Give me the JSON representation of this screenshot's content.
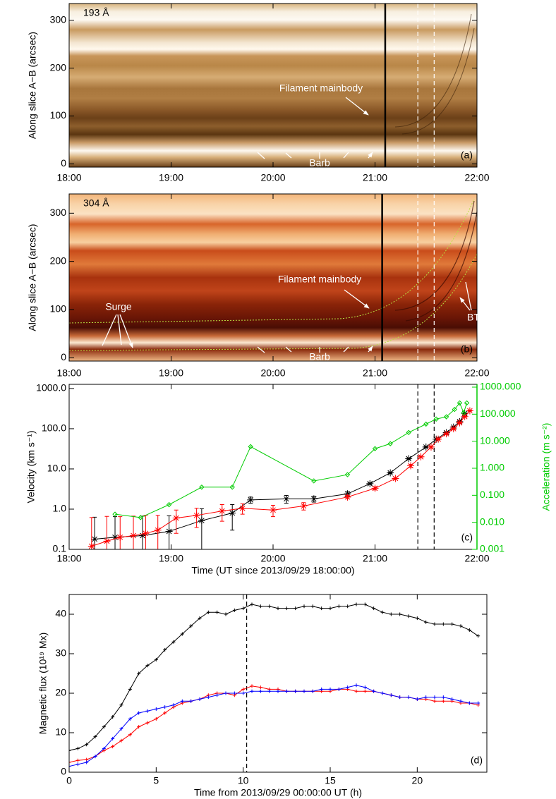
{
  "chart_data": [
    {
      "type": "image",
      "wavelength": "193 Å",
      "label": "(a)",
      "annotations": [
        "Filament mainbody",
        "Barb"
      ],
      "ylabel": "Along slice A−B (arcsec)",
      "xlim": [
        18,
        22
      ],
      "xticks": [
        {
          "value": 18,
          "label": "18:00"
        },
        {
          "value": 19,
          "label": "19:00"
        },
        {
          "value": 20,
          "label": "20:00"
        },
        {
          "value": 21,
          "label": "21:00"
        },
        {
          "value": 22,
          "label": "22:00"
        }
      ],
      "ylim": [
        -7,
        335
      ],
      "yticks": [
        0,
        100,
        200,
        300
      ],
      "vlines": [
        21.1,
        21.42,
        21.58
      ],
      "vline_styles": [
        "solid",
        "dashed",
        "dashed"
      ],
      "vline_colors": [
        "#000000",
        "#ffffff",
        "#ffffff"
      ]
    },
    {
      "type": "image",
      "wavelength": "304 Å",
      "label": "(b)",
      "annotations": [
        "Filament mainbody",
        "Surge",
        "BT",
        "Barb"
      ],
      "ylabel": "Along slice A−B (arcsec)",
      "xlim": [
        18,
        22
      ],
      "xticks": [
        {
          "value": 18,
          "label": "18:00"
        },
        {
          "value": 19,
          "label": "19:00"
        },
        {
          "value": 20,
          "label": "20:00"
        },
        {
          "value": 21,
          "label": "21:00"
        },
        {
          "value": 22,
          "label": "22:00"
        }
      ],
      "ylim": [
        -7,
        340
      ],
      "yticks": [
        0,
        100,
        200,
        300
      ],
      "vlines": [
        21.07,
        21.42,
        21.58
      ],
      "vline_styles": [
        "solid",
        "dashed",
        "dashed"
      ],
      "vline_colors": [
        "#000000",
        "#ffffff",
        "#ffffff"
      ]
    },
    {
      "type": "line",
      "label": "(c)",
      "xlabel": "Time (UT since 2013/09/29 18:00:00)",
      "ylabel": "Velocity (km s⁻¹)",
      "y2label": "Acceleration (m s⁻²)",
      "y2color": "#00cc00",
      "xlim": [
        18,
        22
      ],
      "xticks": [
        {
          "value": 18,
          "label": "18:00"
        },
        {
          "value": 19,
          "label": "19:00"
        },
        {
          "value": 20,
          "label": "20:00"
        },
        {
          "value": 21,
          "label": "21:00"
        },
        {
          "value": 22,
          "label": "22:00"
        }
      ],
      "ylog": true,
      "ylim": [
        0.1,
        1270
      ],
      "yticks": [
        0.1,
        {
          "value": 1,
          "label": "1.0"
        },
        {
          "value": 10,
          "label": "10.0"
        },
        {
          "value": 100,
          "label": "100.0"
        },
        {
          "value": 1000,
          "label": "1000.0"
        }
      ],
      "y2log": true,
      "y2lim": [
        0.001,
        1270
      ],
      "y2ticks": [
        0.001,
        {
          "value": 0.01,
          "label": "0.010"
        },
        {
          "value": 0.1,
          "label": "0.100"
        },
        {
          "value": 1,
          "label": "1.000"
        },
        {
          "value": 10,
          "label": "10.000"
        },
        {
          "value": 100,
          "label": "100.000"
        },
        {
          "value": 1000,
          "label": "1000.000"
        }
      ],
      "vlines": [
        21.42,
        21.58
      ],
      "vline_styles": [
        "dashed",
        "dashed"
      ],
      "vline_colors": [
        "#000000",
        "#000000"
      ],
      "series": [
        {
          "color": "#000000",
          "marker": "asterisk",
          "x": [
            18.25,
            18.45,
            18.72,
            18.98,
            19.3,
            19.6,
            19.78,
            20.13,
            20.4,
            20.73,
            20.95,
            21.15,
            21.33,
            21.5,
            21.6,
            21.7,
            21.77,
            21.83,
            21.88
          ],
          "values": [
            0.18,
            0.2,
            0.22,
            0.28,
            0.52,
            0.8,
            1.7,
            1.8,
            1.8,
            2.4,
            4.3,
            8,
            18,
            35,
            55,
            80,
            110,
            150,
            240
          ],
          "errors": [
            0.45,
            0.45,
            0.45,
            0.4,
            0.5,
            0.5,
            0.3,
            0.4,
            0.3,
            0.3,
            0.2,
            0.3,
            0.5,
            1,
            1,
            2,
            2,
            3,
            4
          ]
        },
        {
          "color": "#ff0000",
          "marker": "asterisk",
          "x": [
            18.22,
            18.37,
            18.5,
            18.63,
            18.75,
            18.87,
            19.05,
            19.25,
            19.5,
            19.7,
            20.0,
            20.3,
            20.73,
            21.0,
            21.2,
            21.35,
            21.45,
            21.55,
            21.62,
            21.7,
            21.77,
            21.83,
            21.88,
            21.93
          ],
          "values": [
            0.12,
            0.16,
            0.2,
            0.22,
            0.25,
            0.3,
            0.6,
            0.7,
            0.9,
            1.05,
            0.95,
            1.2,
            2.0,
            3.3,
            5.8,
            12,
            20,
            35,
            55,
            75,
            100,
            140,
            200,
            280
          ],
          "errors": [
            0.5,
            0.5,
            0.45,
            0.45,
            0.45,
            0.4,
            0.35,
            0.35,
            0.4,
            0.3,
            0.3,
            0.25,
            0.2,
            0.3,
            0.4,
            1,
            1,
            2,
            2,
            3,
            4,
            5,
            6,
            8
          ]
        },
        {
          "color": "#00cc00",
          "marker": "diamond",
          "axis": "y2",
          "x": [
            18.45,
            18.7,
            18.98,
            19.3,
            19.6,
            19.78,
            20.4,
            20.73,
            21.0,
            21.15,
            21.33,
            21.5,
            21.6,
            21.7,
            21.78,
            21.83,
            21.87,
            21.9
          ],
          "values": [
            0.02,
            0.015,
            0.045,
            0.2,
            0.2,
            6.3,
            0.34,
            0.58,
            5.3,
            8.1,
            21,
            43,
            66,
            80,
            150,
            260,
            113,
            260
          ]
        }
      ]
    },
    {
      "type": "line",
      "label": "(d)",
      "xlabel": "Time from 2013/09/29 00:00:00 UT (h)",
      "ylabel": "Magnetic flux (10¹⁹ Mx)",
      "xlim": [
        0,
        24
      ],
      "xticks": [
        0,
        5,
        10,
        15,
        20
      ],
      "ylim": [
        0,
        45
      ],
      "yticks": [
        0,
        10,
        20,
        30,
        40
      ],
      "vlines": [
        10.2
      ],
      "vline_styles": [
        "dashed"
      ],
      "vline_colors": [
        "#000000"
      ],
      "x": [
        0,
        0.5,
        1,
        1.5,
        2,
        2.5,
        3,
        3.5,
        4,
        4.5,
        5,
        5.5,
        6,
        6.5,
        7,
        7.5,
        8,
        8.5,
        9,
        9.5,
        10,
        10.5,
        11,
        11.5,
        12,
        12.5,
        13,
        13.5,
        14,
        14.5,
        15,
        15.5,
        16,
        16.5,
        17,
        17.5,
        18,
        18.5,
        19,
        19.5,
        20,
        20.5,
        21,
        21.5,
        22,
        22.5,
        23,
        23.5
      ],
      "series": [
        {
          "color": "#000000",
          "marker": "plus",
          "values": [
            5.5,
            6,
            7,
            9,
            11.5,
            14,
            17,
            21,
            25,
            27,
            28.5,
            31,
            33,
            35,
            37,
            39,
            40.5,
            40.5,
            40,
            41,
            41.5,
            42.5,
            42,
            42,
            41.5,
            41.5,
            41.5,
            42,
            42,
            41.5,
            41.5,
            42,
            42,
            42.5,
            42.5,
            41.5,
            40.5,
            40,
            40,
            39.5,
            39,
            38,
            37.5,
            37.5,
            37.5,
            37,
            36,
            34.5
          ]
        },
        {
          "color": "#ff0000",
          "marker": "plus",
          "values": [
            2.5,
            3,
            3.2,
            4,
            5.5,
            6.5,
            8,
            9.5,
            11.5,
            12.5,
            13.5,
            15,
            16.5,
            17.5,
            18,
            18.5,
            19.5,
            20,
            20,
            19.5,
            21,
            21.8,
            21.5,
            21,
            21,
            20.5,
            20.5,
            20.5,
            20.5,
            20.5,
            20.5,
            21,
            21,
            20.5,
            20.5,
            20.5,
            20,
            19.5,
            19,
            19,
            18.5,
            18.5,
            18,
            18,
            18,
            17.5,
            17.5,
            17
          ]
        },
        {
          "color": "#0000ff",
          "marker": "plus",
          "values": [
            1.5,
            2,
            2.5,
            4,
            6,
            8.5,
            11,
            13.5,
            15,
            15.5,
            16,
            16.5,
            17,
            18,
            18,
            18.5,
            19,
            19.5,
            20,
            20,
            20,
            20.5,
            20.5,
            20.5,
            20.5,
            20.5,
            20.5,
            20.5,
            20.5,
            21,
            21,
            21,
            21.5,
            22,
            21.5,
            20.5,
            20,
            19.5,
            19,
            19,
            18.5,
            19,
            19,
            19,
            18.5,
            18,
            17.5,
            17.5
          ]
        }
      ]
    }
  ]
}
